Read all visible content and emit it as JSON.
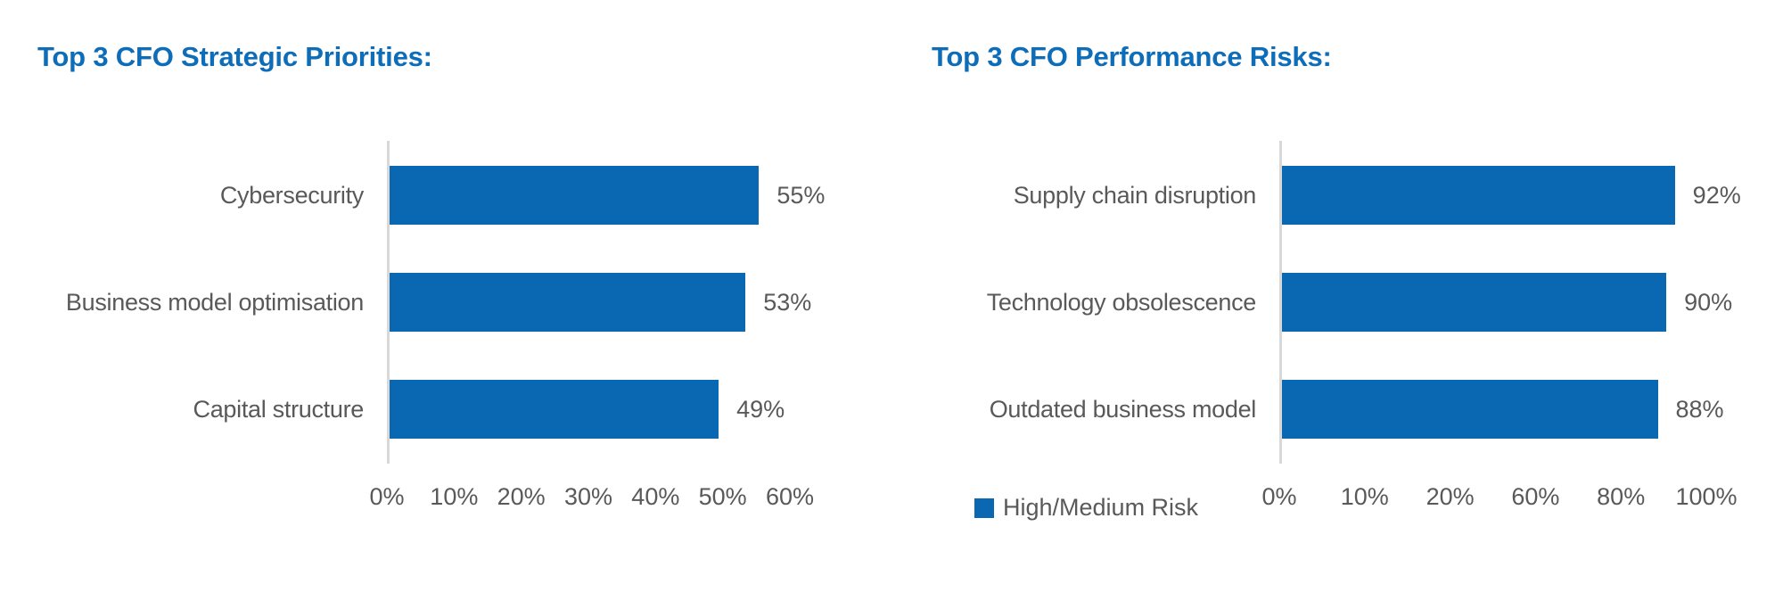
{
  "colors": {
    "bar": "#0a68b2",
    "title": "#0d6db8",
    "text": "#595959",
    "axis_line": "#d8d8d8",
    "background": "#ffffff"
  },
  "chart_data": [
    {
      "type": "bar",
      "orientation": "horizontal",
      "title": "Top 3 CFO Strategic Priorities:",
      "categories": [
        "Cybersecurity",
        "Business model optimisation",
        "Capital structure"
      ],
      "values": [
        55,
        53,
        49
      ],
      "value_labels": [
        "55%",
        "53%",
        "49%"
      ],
      "xlim": [
        0,
        60
      ],
      "x_tick_labels": [
        "0%",
        "10%",
        "20%",
        "30%",
        "40%",
        "50%",
        "60%"
      ],
      "grid": false,
      "legend": null
    },
    {
      "type": "bar",
      "orientation": "horizontal",
      "title": "Top 3 CFO Performance Risks:",
      "categories": [
        "Supply chain disruption",
        "Technology obsolescence",
        "Outdated business model"
      ],
      "values": [
        92,
        90,
        88
      ],
      "value_labels": [
        "92%",
        "90%",
        "88%"
      ],
      "xlim": [
        0,
        100
      ],
      "x_tick_labels": [
        "0%",
        "10%",
        "20%",
        "60%",
        "80%",
        "100%"
      ],
      "grid": false,
      "legend": {
        "label": "High/Medium Risk",
        "position": "bottom-left"
      }
    }
  ]
}
